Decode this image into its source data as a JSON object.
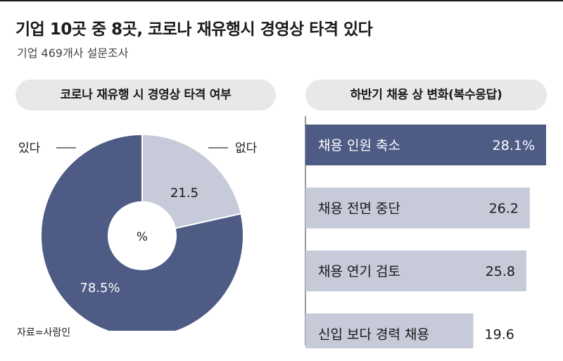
{
  "header": {
    "title": "기업 10곳 중 8곳, 코로나 재유행시 경영상 타격 있다",
    "subtitle": "기업 469개사 설문조사",
    "source": "자료=사람인"
  },
  "colors": {
    "dark": "#4d5b85",
    "light": "#c6cad9",
    "text_dark": "#1a1a1a",
    "text_light": "#ffffff",
    "pill_bg": "#e8e8e8"
  },
  "chart_data": [
    {
      "type": "pie",
      "title": "코로나 재유행 시 경영상 타격 여부",
      "center_label": "%",
      "slices": [
        {
          "label": "있다",
          "value": 78.5,
          "value_label": "78.5%"
        },
        {
          "label": "없다",
          "value": 21.5,
          "value_label": "21.5"
        }
      ]
    },
    {
      "type": "bar",
      "orientation": "horizontal",
      "title": "하반기 채용 상 변화(복수응답)",
      "categories": [
        "채용 인원 축소",
        "채용 전면 중단",
        "채용 연기 검토",
        "신입 보다 경력 채용"
      ],
      "values": [
        28.1,
        26.2,
        25.8,
        19.6
      ],
      "value_labels": [
        "28.1%",
        "26.2",
        "25.8",
        "19.6"
      ]
    }
  ]
}
